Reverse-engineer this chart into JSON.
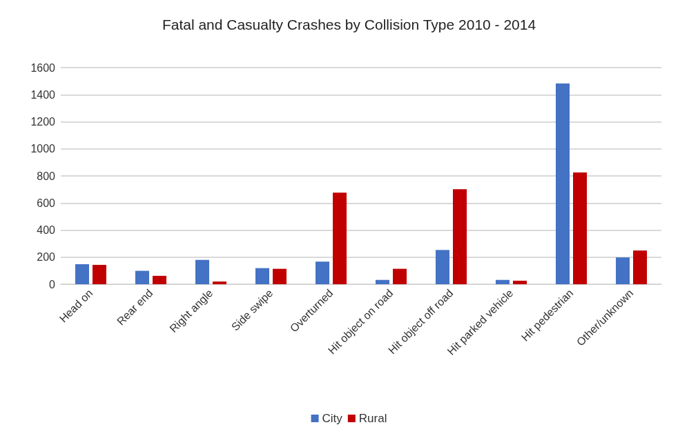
{
  "chart_data": {
    "type": "bar",
    "title": "Fatal and Casualty Crashes by Collision Type 2010 - 2014",
    "categories": [
      "Head on",
      "Rear end",
      "Right angle",
      "Side swipe",
      "Overturned",
      "Hit object on road",
      "Hit object off road",
      "Hit parked vehicle",
      "Hit pedestrian",
      "Other/unknown"
    ],
    "series": [
      {
        "name": "City",
        "color": "#4472c4",
        "values": [
          148,
          99,
          180,
          119,
          167,
          32,
          253,
          32,
          1483,
          198
        ]
      },
      {
        "name": "Rural",
        "color": "#c00000",
        "values": [
          143,
          62,
          20,
          114,
          677,
          114,
          702,
          26,
          825,
          249
        ]
      }
    ],
    "ylim": [
      0,
      1600
    ],
    "yticks": [
      0,
      200,
      400,
      600,
      800,
      1000,
      1200,
      1400,
      1600
    ],
    "grid": "y",
    "legend": "bottom"
  }
}
